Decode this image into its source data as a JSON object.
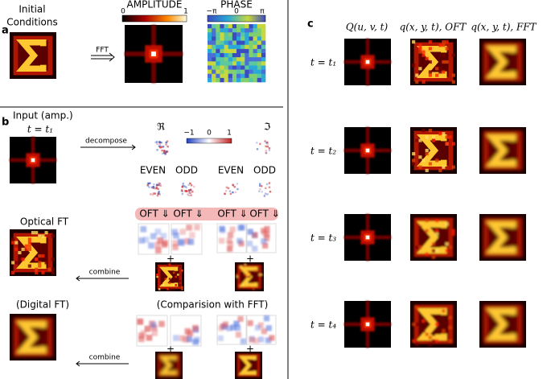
{
  "panel_a": {
    "label": "a",
    "title_lines": [
      "Initial",
      "Conditions"
    ],
    "arrow_label": "FFT",
    "amplitude": {
      "title": "AMPLITUDE",
      "ticks": [
        "0",
        "1"
      ]
    },
    "phase": {
      "title": "PHASE",
      "ticks": [
        "−π",
        "0",
        "π"
      ]
    }
  },
  "panel_b": {
    "label": "b",
    "input_title": "Input (amp.)",
    "input_time": "t = t₁",
    "decompose": "decompose",
    "real": "ℜ",
    "imag": "ℑ",
    "colorbar_ticks": [
      "−1",
      "0",
      "1"
    ],
    "parts": [
      "EVEN",
      "ODD",
      "EVEN",
      "ODD"
    ],
    "oft": [
      "OFT ⇓",
      "OFT ⇓",
      "OFT ⇓",
      "OFT ⇓"
    ],
    "optical_title": "Optical FT",
    "plus": "+",
    "combine": "combine",
    "digital_title": "(Digital FT)",
    "comparison_title": "(Comparision with FFT)"
  },
  "panel_c": {
    "label": "c",
    "columns": [
      "Q(u, v, t)",
      "q(x, y, t), OFT",
      "q(x, y, t), FFT"
    ],
    "rows": [
      "t = t₁",
      "t = t₂",
      "t = t₃",
      "t = t₄"
    ]
  }
}
